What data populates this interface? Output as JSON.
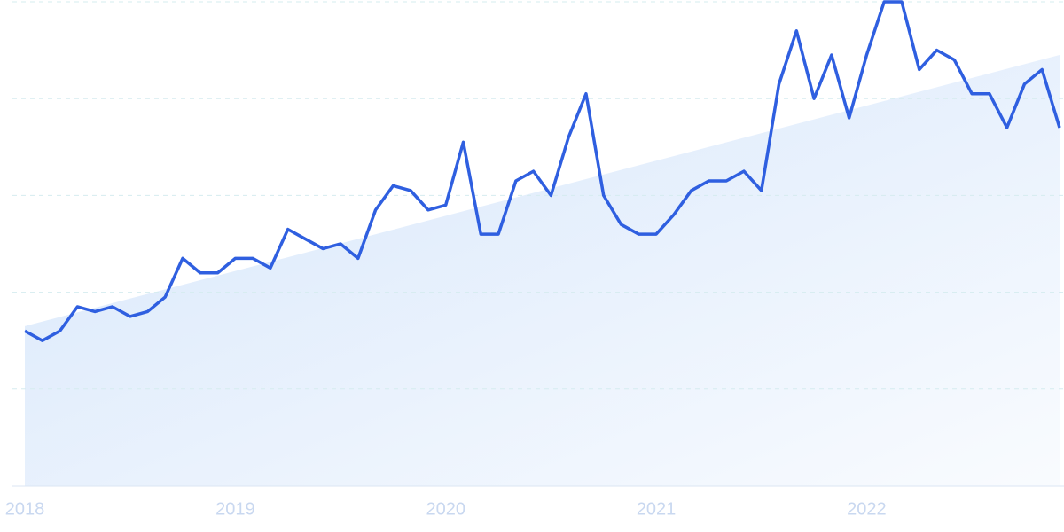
{
  "chart_data": {
    "type": "line",
    "categories": [
      "2018",
      null,
      null,
      null,
      null,
      null,
      null,
      null,
      null,
      null,
      null,
      null,
      "2019",
      null,
      null,
      null,
      null,
      null,
      null,
      null,
      null,
      null,
      null,
      null,
      "2020",
      null,
      null,
      null,
      null,
      null,
      null,
      null,
      null,
      null,
      null,
      null,
      "2021",
      null,
      null,
      null,
      null,
      null,
      null,
      null,
      null,
      null,
      null,
      null,
      "2022",
      null,
      null,
      null,
      null,
      null,
      null,
      null,
      null,
      null,
      null,
      null
    ],
    "series": [
      {
        "color": "#2f5fe0",
        "values": [
          32,
          30,
          32,
          37,
          36,
          37,
          35,
          36,
          39,
          47,
          44,
          44,
          47,
          47,
          45,
          53,
          51,
          49,
          50,
          47,
          57,
          62,
          61,
          57,
          58,
          71,
          52,
          52,
          63,
          65,
          60,
          72,
          81,
          60,
          54,
          52,
          52,
          56,
          61,
          63,
          63,
          65,
          61,
          83,
          94,
          80,
          89,
          76,
          89,
          100,
          100,
          86,
          90,
          88,
          81,
          81,
          74,
          83,
          86,
          74
        ]
      }
    ],
    "trend": {
      "color": "#d6e6fb",
      "values": [
        33,
        89
      ]
    },
    "ylim": [
      0,
      100
    ],
    "ygrid": [
      0,
      20,
      40,
      60,
      80,
      100
    ],
    "grid": true
  }
}
